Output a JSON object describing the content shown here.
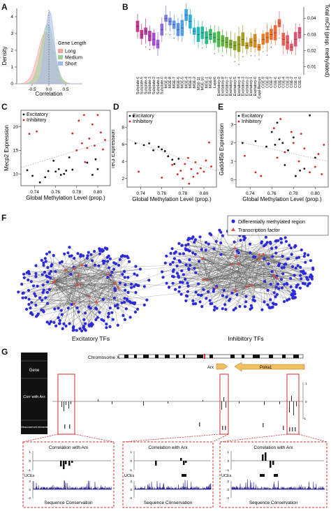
{
  "letters": {
    "A": "A",
    "B": "B",
    "C": "C",
    "D": "D",
    "E": "E",
    "F": "F",
    "G": "G"
  },
  "panelA": {
    "ylabel": "Density",
    "xlabel": "Correlation",
    "legend_title": "Gene Length",
    "xticks": [
      "-0.5",
      "0.0",
      "0.5"
    ],
    "yticks": [
      "0",
      "1",
      "2",
      "3",
      "4"
    ],
    "series": [
      {
        "name": "Long",
        "color": "#f4a7a0"
      },
      {
        "name": "Medium",
        "color": "#9ad39a"
      },
      {
        "name": "Short",
        "color": "#a9b8f0"
      }
    ]
  },
  "panelB": {
    "ylabel": "Total mCH (prop. methylated)",
    "yticks": [
      "0.01",
      "0.02",
      "0.03",
      "0.04"
    ],
    "ylim": [
      0.005,
      0.047
    ],
    "categories": [
      "Subplate-6",
      "Subplate-5",
      "Subplate-4",
      "Subplate-3",
      "Subplate-2",
      "Subplate-1",
      "Subplate-0",
      "MGE-9",
      "MGE-8",
      "MGE-7",
      "MGE-6",
      "MGE-5",
      "MGE-4",
      "MGE-3",
      "MGE-2",
      "MGE-11",
      "MGE-10",
      "MGE-1",
      "MGE-0",
      "Layer6",
      "Excitatory-9",
      "Excitatory-8",
      "Excitatory-7",
      "Excitatory-6",
      "Excitatory-5",
      "Excitatory-4",
      "Excitatory-3",
      "Excitatory-2",
      "Excitatory-1",
      "Excitatory-0",
      "Cajal-Retzius",
      "CGE-9",
      "CGE-8",
      "CGE-7",
      "CGE-6",
      "CGE-5",
      "CGE-4",
      "CGE-3",
      "CGE-2",
      "CGE-1",
      "CGE-0"
    ],
    "medians": [
      0.035,
      0.03,
      0.032,
      0.029,
      0.027,
      0.024,
      0.033,
      0.04,
      0.038,
      0.036,
      0.033,
      0.034,
      0.042,
      0.038,
      0.032,
      0.03,
      0.031,
      0.028,
      0.03,
      0.028,
      0.027,
      0.026,
      0.025,
      0.024,
      0.023,
      0.024,
      0.027,
      0.023,
      0.025,
      0.026,
      0.022,
      0.027,
      0.028,
      0.03,
      0.031,
      0.037,
      0.027,
      0.025,
      0.022,
      0.027,
      0.031
    ],
    "colors": [
      "#c2378c",
      "#c2378c",
      "#b43ba8",
      "#b43ba8",
      "#a84bc8",
      "#9b5fd8",
      "#8a6fe0",
      "#7a7ee6",
      "#6a8ff0",
      "#6196ee",
      "#5a8fe8",
      "#4fa0e8",
      "#3aa6e8",
      "#32aedb",
      "#2db4c8",
      "#2db8b8",
      "#2eb89e",
      "#35b885",
      "#3ab870",
      "#46b85a",
      "#4fb84a",
      "#5db03c",
      "#6aae34",
      "#78a82e",
      "#87a42a",
      "#98a026",
      "#a99a22",
      "#b8951f",
      "#c68f1e",
      "#d3891e",
      "#e0821f",
      "#e87c22",
      "#ec7628",
      "#ee7030",
      "#ef6b3a",
      "#ee6545",
      "#ec6050",
      "#e85c5c",
      "#e35a68",
      "#dd5874",
      "#d55780"
    ]
  },
  "panelC": {
    "ylabel": "Mecp2 Expression",
    "xlabel": "Global Methylation Level (prop.)",
    "xticks": [
      "0.74",
      "0.76",
      "0.78",
      "0.80"
    ],
    "yticks": [
      "10",
      "15",
      "20"
    ],
    "xlim": [
      0.727,
      0.812
    ],
    "ylim": [
      7.5,
      23.5
    ],
    "legend": [
      "Excitatory",
      "Inhibitory"
    ],
    "excitatory": [
      [
        0.733,
        10.8
      ],
      [
        0.738,
        9.6
      ],
      [
        0.745,
        8.2
      ],
      [
        0.75,
        9.3
      ],
      [
        0.753,
        10.6
      ],
      [
        0.758,
        12.8
      ],
      [
        0.76,
        10.5
      ],
      [
        0.763,
        11.0
      ],
      [
        0.765,
        9.8
      ],
      [
        0.768,
        10.0
      ],
      [
        0.77,
        10.7
      ],
      [
        0.773,
        13.5
      ],
      [
        0.776,
        10.9
      ],
      [
        0.79,
        12.4
      ],
      [
        0.795,
        9.8
      ],
      [
        0.798,
        13.1
      ],
      [
        0.8,
        11.0
      ]
    ],
    "inhibitory": [
      [
        0.735,
        18.5
      ],
      [
        0.742,
        19.0
      ],
      [
        0.776,
        18.6
      ],
      [
        0.78,
        15.0
      ],
      [
        0.782,
        21.3
      ],
      [
        0.785,
        16.5
      ],
      [
        0.787,
        22.5
      ],
      [
        0.788,
        12.5
      ],
      [
        0.79,
        15.5
      ],
      [
        0.792,
        17.5
      ],
      [
        0.795,
        20.5
      ],
      [
        0.797,
        16.0
      ],
      [
        0.8,
        22.5
      ],
      [
        0.803,
        18.8
      ],
      [
        0.805,
        15.2
      ],
      [
        0.807,
        17.2
      ]
    ],
    "trend": [
      [
        0.727,
        11.3
      ],
      [
        0.812,
        17.2
      ]
    ]
  },
  "panelD": {
    "ylabel": "Tet3 Expression",
    "xlabel": "Global Methylation Level (prop.)",
    "xticks": [
      "0.74",
      "0.76",
      "0.78",
      "0.80"
    ],
    "yticks": [
      "2",
      "4",
      "6",
      "8"
    ],
    "xlim": [
      0.727,
      0.812
    ],
    "ylim": [
      1.0,
      9.8
    ],
    "legend": [
      "Excitatory",
      "Inhibitory"
    ],
    "excitatory": [
      [
        0.733,
        9.3
      ],
      [
        0.735,
        6.1
      ],
      [
        0.743,
        5.9
      ],
      [
        0.748,
        6.1
      ],
      [
        0.752,
        5.3
      ],
      [
        0.757,
        5.7
      ],
      [
        0.76,
        5.4
      ],
      [
        0.763,
        5.2
      ],
      [
        0.766,
        4.6
      ],
      [
        0.77,
        4.2
      ],
      [
        0.772,
        3.7
      ],
      [
        0.776,
        4.3
      ]
    ],
    "inhibitory": [
      [
        0.738,
        2.8
      ],
      [
        0.76,
        2.1
      ],
      [
        0.77,
        3.6
      ],
      [
        0.775,
        2.5
      ],
      [
        0.778,
        2.9
      ],
      [
        0.78,
        2.0
      ],
      [
        0.782,
        3.7
      ],
      [
        0.785,
        4.4
      ],
      [
        0.786,
        1.4
      ],
      [
        0.788,
        3.1
      ],
      [
        0.79,
        2.2
      ],
      [
        0.792,
        3.9
      ],
      [
        0.794,
        2.6
      ],
      [
        0.797,
        3.2
      ],
      [
        0.8,
        2.8
      ],
      [
        0.802,
        4.1
      ],
      [
        0.805,
        6.2
      ],
      [
        0.807,
        3.4
      ]
    ],
    "trend": [
      [
        0.727,
        6.6
      ],
      [
        0.812,
        2.9
      ]
    ]
  },
  "panelE": {
    "ylabel": "Gadd45b Expression",
    "xlabel": "Global Methylation Level (prop.)",
    "xticks": [
      "0.74",
      "0.76",
      "0.78",
      "0.80"
    ],
    "yticks": [
      "0",
      "1",
      "2",
      "3"
    ],
    "xlim": [
      0.727,
      0.812
    ],
    "ylim": [
      -0.4,
      3.7
    ],
    "legend": [
      "Excitatory",
      "Inhibitory"
    ],
    "excitatory": [
      [
        0.733,
        2.0
      ],
      [
        0.745,
        2.1
      ],
      [
        0.755,
        1.8
      ],
      [
        0.76,
        2.6
      ],
      [
        0.763,
        1.9
      ],
      [
        0.765,
        3.1
      ],
      [
        0.767,
        2.2
      ],
      [
        0.77,
        2.0
      ],
      [
        0.772,
        0.8
      ],
      [
        0.775,
        1.6
      ],
      [
        0.78,
        2.3
      ],
      [
        0.782,
        0.2
      ],
      [
        0.786,
        0.5
      ],
      [
        0.79,
        0.6
      ],
      [
        0.795,
        3.5
      ],
      [
        0.8,
        1.2
      ]
    ],
    "inhibitory": [
      [
        0.735,
        1.3
      ],
      [
        0.745,
        0.4
      ],
      [
        0.75,
        0.2
      ],
      [
        0.762,
        2.8
      ],
      [
        0.765,
        1.2
      ],
      [
        0.768,
        3.3
      ],
      [
        0.772,
        1.5
      ],
      [
        0.778,
        2.6
      ],
      [
        0.78,
        2.0
      ],
      [
        0.785,
        1.0
      ],
      [
        0.787,
        2.5
      ],
      [
        0.79,
        1.7
      ],
      [
        0.795,
        0.4
      ],
      [
        0.8,
        0.7
      ],
      [
        0.803,
        1.4
      ],
      [
        0.806,
        0.3
      ],
      [
        0.808,
        1.9
      ]
    ],
    "trend": [
      [
        0.727,
        2.1
      ],
      [
        0.812,
        1.0
      ]
    ]
  },
  "panelF": {
    "legend": [
      "Differentially methylated region",
      "Transcription factor"
    ],
    "label_left": "Excitatory TFs",
    "label_right": "Inhibitory TFs"
  },
  "panelG": {
    "chromosome": "Chromosome X",
    "track_gene": "Gene",
    "track_corr": "Corr with Arx",
    "track_uce": "Ultraconserved elements",
    "gene_arx": "Arx",
    "gene_polra1": "Polra1",
    "corr_ticks": [
      "1",
      "0",
      "-1"
    ],
    "zoom_title": "Correlation with Arx",
    "zoom_uces": "UCEs",
    "zoom_cons": "Sequence Conservation",
    "zoom_ticks": [
      "1",
      "0",
      "-1",
      "2",
      "0",
      "-2"
    ]
  }
}
